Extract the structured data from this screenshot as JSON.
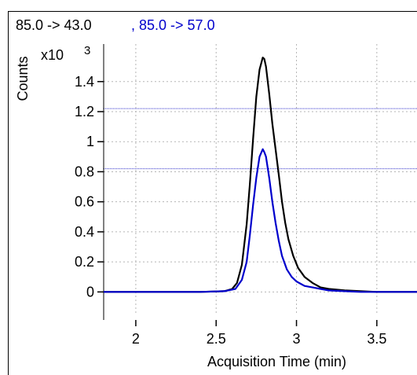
{
  "chart_data": {
    "type": "line",
    "title_transitions": [
      "85.0 -> 43.0",
      ", 85.0 -> 57.0"
    ],
    "xlabel": "Acquisition Time (min)",
    "ylabel": "Counts",
    "y_multiplier": "x10",
    "y_multiplier_exp": "3",
    "xlim": [
      1.8,
      3.75
    ],
    "ylim": [
      -0.15,
      1.65
    ],
    "x_ticks": [
      "2",
      "2.5",
      "3",
      "3.5"
    ],
    "x_tick_values": [
      2,
      2.5,
      3,
      3.5
    ],
    "y_ticks": [
      "0",
      "0.2",
      "0.4",
      "0.6",
      "0.8",
      "1",
      "1.2",
      "1.4"
    ],
    "y_tick_values": [
      0,
      0.2,
      0.4,
      0.6,
      0.8,
      1,
      1.2,
      1.4
    ],
    "grid": true,
    "reference_lines": [
      1.22,
      0.82
    ],
    "reference_color": "#3333cc",
    "series": [
      {
        "name": "85.0 -> 43.0",
        "color": "#000000",
        "x": [
          1.8,
          2.0,
          2.2,
          2.4,
          2.55,
          2.6,
          2.63,
          2.66,
          2.69,
          2.71,
          2.73,
          2.75,
          2.77,
          2.79,
          2.8,
          2.81,
          2.83,
          2.85,
          2.87,
          2.89,
          2.91,
          2.93,
          2.95,
          2.98,
          3.01,
          3.05,
          3.1,
          3.15,
          3.2,
          3.3,
          3.4,
          3.5,
          3.6,
          3.75
        ],
        "y": [
          0.0,
          0.0,
          0.0,
          0.0,
          0.005,
          0.02,
          0.06,
          0.18,
          0.45,
          0.72,
          1.02,
          1.3,
          1.48,
          1.56,
          1.55,
          1.5,
          1.32,
          1.12,
          0.95,
          0.78,
          0.6,
          0.46,
          0.35,
          0.24,
          0.16,
          0.1,
          0.06,
          0.03,
          0.02,
          0.01,
          0.005,
          0.0,
          0.0,
          0.0
        ]
      },
      {
        "name": "85.0 -> 57.0",
        "color": "#0000cc",
        "x": [
          1.8,
          2.0,
          2.2,
          2.4,
          2.55,
          2.62,
          2.66,
          2.69,
          2.71,
          2.73,
          2.75,
          2.77,
          2.79,
          2.8,
          2.81,
          2.83,
          2.85,
          2.87,
          2.89,
          2.91,
          2.94,
          2.97,
          3.0,
          3.05,
          3.1,
          3.15,
          3.2,
          3.3,
          3.4,
          3.5,
          3.6,
          3.75
        ],
        "y": [
          0.0,
          0.0,
          0.0,
          0.0,
          0.005,
          0.02,
          0.08,
          0.2,
          0.38,
          0.58,
          0.76,
          0.9,
          0.95,
          0.93,
          0.9,
          0.76,
          0.6,
          0.46,
          0.34,
          0.24,
          0.15,
          0.1,
          0.07,
          0.04,
          0.03,
          0.02,
          0.01,
          0.005,
          0.0,
          0.0,
          0.0,
          0.0
        ]
      }
    ]
  }
}
